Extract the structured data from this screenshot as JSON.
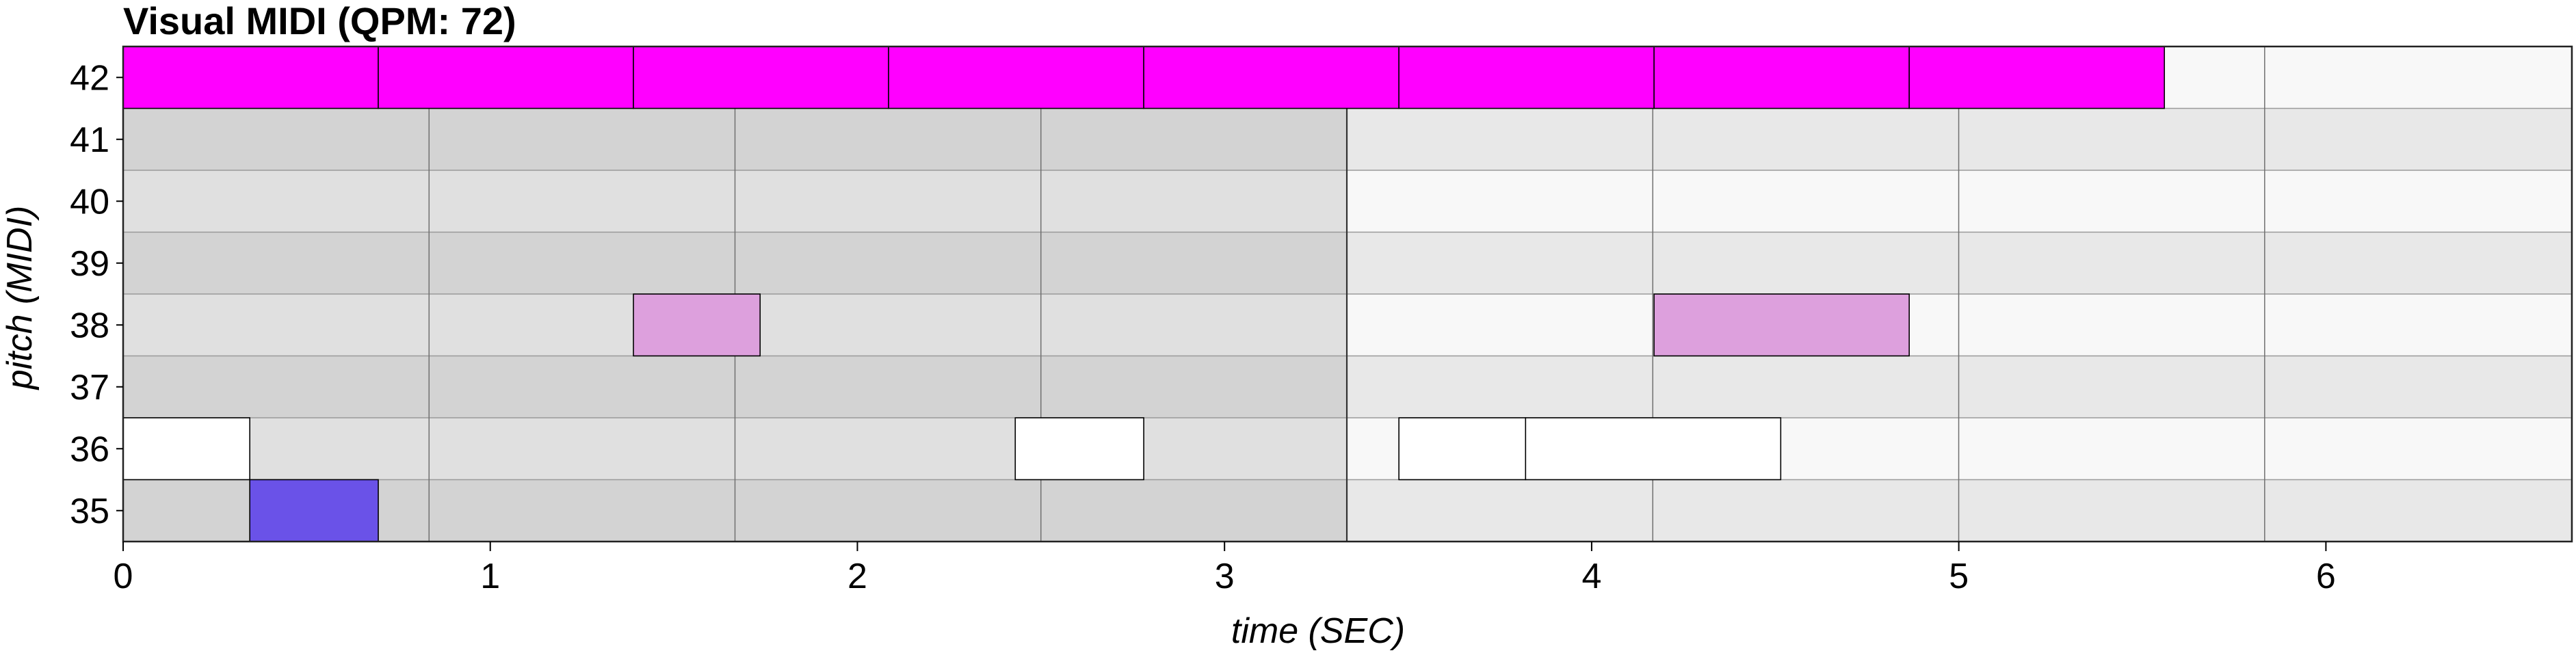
{
  "chart_data": {
    "type": "piano-roll",
    "title": "Visual MIDI (QPM: 72)",
    "xlabel": "time (SEC)",
    "ylabel": "pitch (MIDI)",
    "x_ticks": [
      0,
      1,
      2,
      3,
      4,
      5,
      6
    ],
    "xlim": [
      0,
      6.67
    ],
    "pitches": [
      42,
      41,
      40,
      39,
      38,
      37,
      36,
      35
    ],
    "beat_seconds": 0.8333,
    "bar_seconds": 3.3333,
    "colors": {
      "note_42": "#ff00ff",
      "note_38": "#dda0dd",
      "note_36": "#ffffff",
      "note_35": "#6a52e8",
      "background_dark_even": "#d3d3d3",
      "background_dark_odd": "#e0e0e0",
      "background_light_even": "#e8e8e8",
      "background_light_odd": "#f8f8f8",
      "grid_line": "#707070",
      "note_outline": "#000000"
    },
    "notes": [
      {
        "pitch": 42,
        "start": 0.0,
        "end": 0.695,
        "color": "#ff00ff"
      },
      {
        "pitch": 42,
        "start": 0.695,
        "end": 1.39,
        "color": "#ff00ff"
      },
      {
        "pitch": 42,
        "start": 1.39,
        "end": 2.085,
        "color": "#ff00ff"
      },
      {
        "pitch": 42,
        "start": 2.085,
        "end": 2.78,
        "color": "#ff00ff"
      },
      {
        "pitch": 42,
        "start": 2.78,
        "end": 3.475,
        "color": "#ff00ff"
      },
      {
        "pitch": 42,
        "start": 3.475,
        "end": 4.17,
        "color": "#ff00ff"
      },
      {
        "pitch": 42,
        "start": 4.17,
        "end": 4.865,
        "color": "#ff00ff"
      },
      {
        "pitch": 42,
        "start": 4.865,
        "end": 5.56,
        "color": "#ff00ff"
      },
      {
        "pitch": 38,
        "start": 1.39,
        "end": 1.735,
        "color": "#dda0dd"
      },
      {
        "pitch": 38,
        "start": 4.17,
        "end": 4.865,
        "color": "#dda0dd"
      },
      {
        "pitch": 36,
        "start": 0.0,
        "end": 0.345,
        "color": "#ffffff"
      },
      {
        "pitch": 36,
        "start": 2.43,
        "end": 2.78,
        "color": "#ffffff"
      },
      {
        "pitch": 36,
        "start": 3.475,
        "end": 3.82,
        "color": "#ffffff"
      },
      {
        "pitch": 36,
        "start": 3.82,
        "end": 4.515,
        "color": "#ffffff"
      },
      {
        "pitch": 35,
        "start": 0.345,
        "end": 0.695,
        "color": "#6a52e8"
      }
    ]
  }
}
